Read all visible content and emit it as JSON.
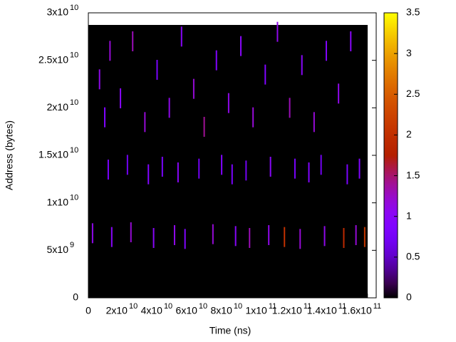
{
  "chart_data": {
    "type": "heatmap",
    "x_label": "Time (ns)",
    "y_label": "Address (bytes)",
    "xlim": [
      0,
      165000000000
    ],
    "ylim": [
      0,
      30000000000
    ],
    "zlim": [
      0,
      3.5
    ],
    "xticks": [
      0,
      {
        "value": 20000000000,
        "label": "2x10",
        "exponent": "10"
      },
      {
        "value": 40000000000,
        "label": "4x10",
        "exponent": "10"
      },
      {
        "value": 60000000000,
        "label": "6x10",
        "exponent": "10"
      },
      {
        "value": 80000000000,
        "label": "8x10",
        "exponent": "10"
      },
      {
        "value": 100000000000,
        "label": "1x10",
        "exponent": "11"
      },
      {
        "value": 120000000000,
        "label": "1.2x10",
        "exponent": "11"
      },
      {
        "value": 140000000000,
        "label": "1.4x10",
        "exponent": "11"
      },
      {
        "value": 160000000000,
        "label": "1.6x10",
        "exponent": "11"
      }
    ],
    "yticks": [
      0,
      {
        "value": 5000000000,
        "label": "5x10",
        "exponent": "9"
      },
      {
        "value": 10000000000,
        "label": "1x10",
        "exponent": "10"
      },
      {
        "value": 15000000000,
        "label": "1.5x10",
        "exponent": "10"
      },
      {
        "value": 20000000000,
        "label": "2x10",
        "exponent": "10"
      },
      {
        "value": 25000000000,
        "label": "2.5x10",
        "exponent": "10"
      },
      {
        "value": 30000000000,
        "label": "3x10",
        "exponent": "10"
      }
    ],
    "zticks": [
      0,
      0.5,
      1,
      1.5,
      2,
      2.5,
      3,
      3.5
    ],
    "x": [
      6000000000.0,
      9000000000.0,
      12000000000.0,
      18000000000.0,
      25000000000.0,
      32000000000.0,
      39000000000.0,
      46000000000.0,
      53000000000.0,
      60000000000.0,
      66000000000.0,
      73000000000.0,
      80000000000.0,
      87000000000.0,
      94000000000.0,
      101000000000.0,
      108000000000.0,
      115000000000.0,
      122000000000.0,
      129000000000.0,
      136000000000.0,
      143000000000.0,
      150000000000.0,
      11000000000.0,
      22000000000.0,
      34000000000.0,
      42000000000.0,
      51000000000.0,
      63000000000.0,
      76000000000.0,
      82000000000.0,
      90000000000.0,
      104000000000.0,
      118000000000.0,
      126000000000.0,
      133000000000.0,
      148000000000.0,
      155000000000.0,
      2000000000.0,
      13000000000.0,
      24000000000.0,
      37000000000.0,
      49000000000.0,
      55000000000.0,
      71000000000.0,
      84000000000.0,
      92000000000.0,
      103000000000.0,
      112000000000.0,
      121000000000.0,
      135000000000.0,
      146000000000.0,
      153000000000.0,
      158000000000.0
    ],
    "y": [
      23000000000.0,
      19000000000.0,
      26000000000.0,
      21000000000.0,
      27000000000.0,
      18500000000.0,
      24000000000.0,
      20000000000.0,
      27500000000.0,
      22000000000.0,
      18000000000.0,
      25000000000.0,
      20500000000.0,
      26500000000.0,
      19000000000.0,
      23500000000.0,
      28000000000.0,
      20000000000.0,
      24500000000.0,
      18500000000.0,
      26000000000.0,
      21500000000.0,
      27000000000.0,
      13500000000.0,
      14000000000.0,
      13000000000.0,
      13800000000.0,
      13200000000.0,
      13600000000.0,
      14000000000.0,
      13000000000.0,
      13400000000.0,
      13800000000.0,
      13600000000.0,
      13200000000.0,
      14000000000.0,
      13000000000.0,
      13600000000.0,
      6800000000.0,
      6400000000.0,
      6900000000.0,
      6300000000.0,
      6600000000.0,
      6200000000.0,
      6700000000.0,
      6500000000.0,
      6300000000.0,
      6600000000.0,
      6400000000.0,
      6200000000.0,
      6500000000.0,
      6300000000.0,
      6600000000.0,
      6400000000.0
    ],
    "values": [
      1.1,
      0.9,
      1.2,
      1.0,
      1.3,
      1.2,
      0.8,
      1.1,
      1.0,
      1.2,
      1.4,
      0.9,
      1.1,
      1.0,
      1.2,
      0.9,
      1.1,
      1.3,
      1.0,
      1.2,
      0.9,
      1.1,
      1.0,
      0.8,
      0.7,
      0.9,
      0.8,
      1.0,
      0.7,
      0.9,
      0.8,
      0.7,
      1.0,
      0.8,
      0.9,
      0.7,
      0.8,
      0.9,
      1.1,
      1.0,
      1.2,
      1.0,
      1.1,
      0.9,
      1.2,
      1.0,
      1.3,
      1.1,
      2.0,
      1.2,
      1.1,
      1.9,
      1.2,
      2.1
    ]
  }
}
